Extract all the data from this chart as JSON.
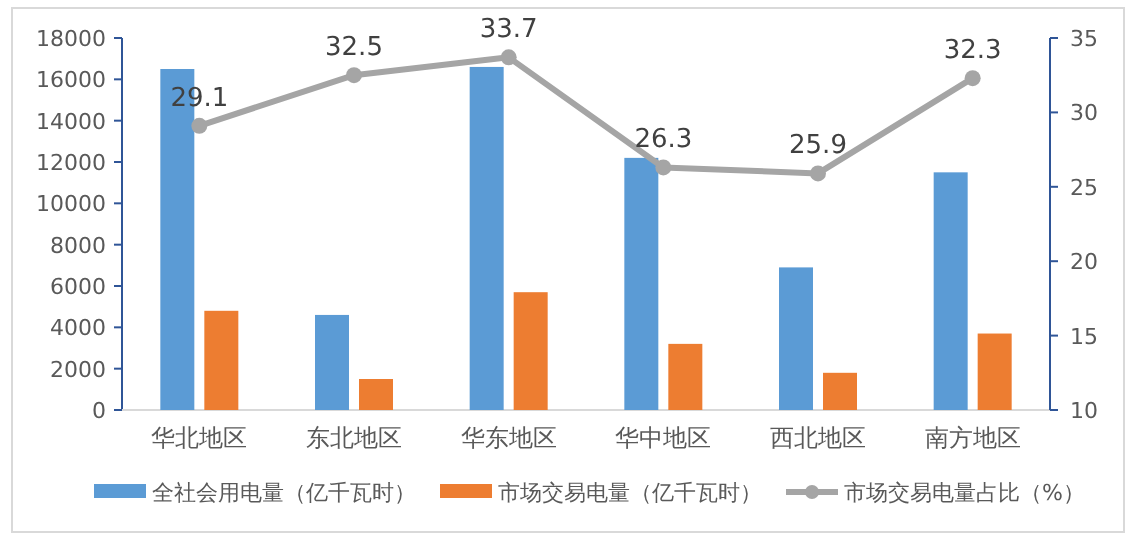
{
  "chart_data": {
    "type": "bar",
    "categories": [
      "华北地区",
      "东北地区",
      "华东地区",
      "华中地区",
      "西北地区",
      "南方地区"
    ],
    "series": [
      {
        "name": "全社会用电量（亿千瓦时）",
        "color": "#5b9bd5",
        "values": [
          16500,
          4600,
          16600,
          12200,
          6900,
          11500
        ]
      },
      {
        "name": "市场交易电量（亿千瓦时）",
        "color": "#ed7d31",
        "values": [
          4800,
          1500,
          5700,
          3200,
          1800,
          3700
        ]
      },
      {
        "name": "市场交易电量占比（%）",
        "type": "line",
        "axis": "y2",
        "color": "#a5a5a5",
        "marker": "circle",
        "values": [
          29.1,
          32.5,
          33.7,
          26.3,
          25.9,
          32.3
        ],
        "value_labels": [
          "29.1",
          "32.5",
          "33.7",
          "26.3",
          "25.9",
          "32.3"
        ]
      }
    ],
    "ylim": [
      0,
      18000
    ],
    "yticks": [
      0,
      2000,
      4000,
      6000,
      8000,
      10000,
      12000,
      14000,
      16000,
      18000
    ],
    "y2lim": [
      10,
      35
    ],
    "y2ticks": [
      10,
      15,
      20,
      25,
      30,
      35
    ],
    "legend": "bottom"
  }
}
